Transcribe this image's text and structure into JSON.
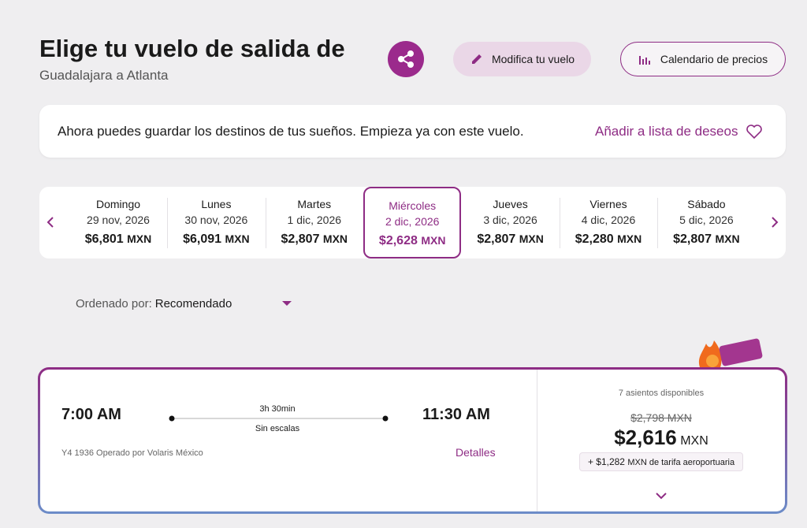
{
  "header": {
    "title": "Elige tu vuelo de salida de",
    "subtitle": "Guadalajara a Atlanta",
    "modify_button": "Modifica tu vuelo",
    "calendar_button": "Calendario de precios"
  },
  "banner": {
    "text": "Ahora puedes guardar los destinos de tus sueños. Empieza ya con este vuelo.",
    "action": "Añadir a lista de deseos"
  },
  "dates": [
    {
      "day": "Domingo",
      "date": "29 nov, 2026",
      "price": "$6,801",
      "currency": "MXN"
    },
    {
      "day": "Lunes",
      "date": "30 nov, 2026",
      "price": "$6,091",
      "currency": "MXN"
    },
    {
      "day": "Martes",
      "date": "1 dic, 2026",
      "price": "$2,807",
      "currency": "MXN"
    },
    {
      "day": "Miércoles",
      "date": "2 dic, 2026",
      "price": "$2,628",
      "currency": "MXN",
      "selected": true
    },
    {
      "day": "Jueves",
      "date": "3 dic, 2026",
      "price": "$2,807",
      "currency": "MXN"
    },
    {
      "day": "Viernes",
      "date": "4 dic, 2026",
      "price": "$2,280",
      "currency": "MXN"
    },
    {
      "day": "Sábado",
      "date": "5 dic, 2026",
      "price": "$2,807",
      "currency": "MXN"
    }
  ],
  "sort": {
    "label": "Ordenado por:",
    "value": "Recomendado"
  },
  "flight": {
    "departure": "7:00 AM",
    "duration": "3h 30min",
    "stops": "Sin escalas",
    "arrival": "11:30 AM",
    "info": "Y4 1936 Operado por Volaris México",
    "details": "Detalles"
  },
  "fare": {
    "seats": "7 asientos disponibles",
    "original_price": "$2,798 MXN",
    "price": "$2,616",
    "currency": "MXN",
    "fee": "+ $1,282",
    "fee_label": "MXN de tarifa aeroportuaria"
  }
}
